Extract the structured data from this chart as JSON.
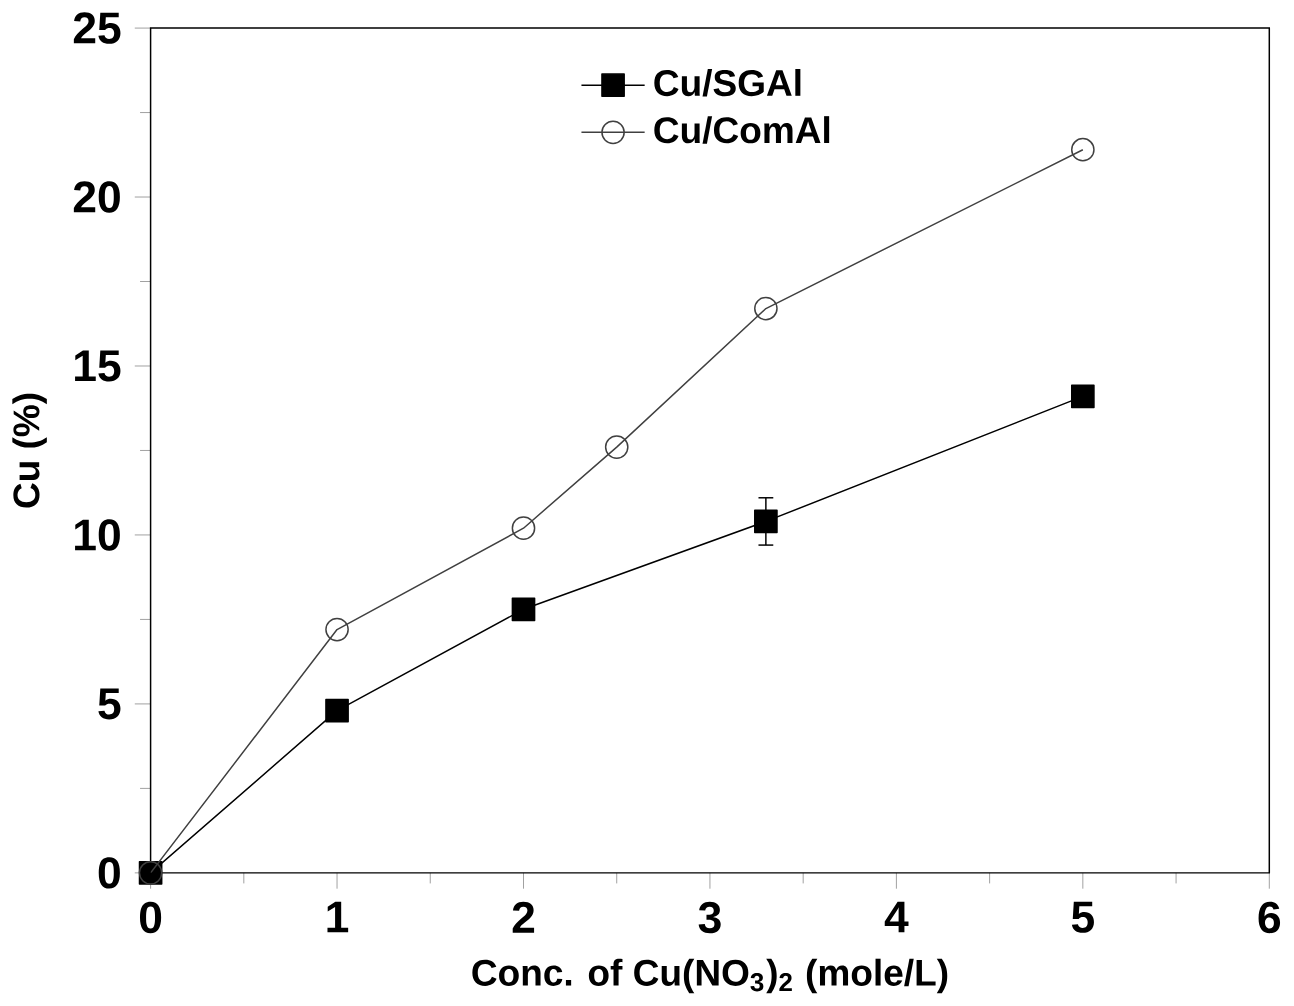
{
  "chart_data": {
    "type": "line",
    "xlabel": "Conc. of Cu(NO$_{3}$)$_{2}$ (mole/L)",
    "ylabel": "Cu (%)",
    "xlim": [
      0,
      6
    ],
    "ylim": [
      0,
      25
    ],
    "xticks": [
      0,
      1,
      2,
      3,
      4,
      5,
      6
    ],
    "yticks": [
      0,
      5,
      10,
      15,
      20,
      25
    ],
    "legend": "top",
    "grid": false,
    "line_style": "solid",
    "series": [
      {
        "name": "Cu/SGAl",
        "color": "#000000",
        "marker": "square",
        "x": [
          0,
          1,
          2,
          3.3,
          5
        ],
        "values": [
          0,
          4.8,
          7.8,
          10.4,
          14.1
        ],
        "errors": [
          null,
          null,
          null,
          0.7,
          null
        ]
      },
      {
        "name": "Cu/ComAl",
        "color": "#404040",
        "marker": "circle",
        "x": [
          0,
          1,
          2,
          2.5,
          3.3,
          5
        ],
        "values": [
          0,
          7.2,
          10.2,
          12.6,
          16.7,
          21.4
        ]
      }
    ]
  }
}
